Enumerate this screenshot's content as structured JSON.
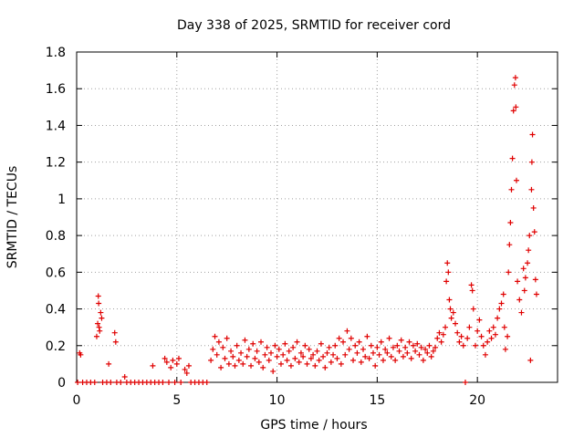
{
  "chart_data": {
    "type": "scatter",
    "title": "Day 338 of 2025, SRMTID for receiver cord",
    "xlabel": "GPS time / hours",
    "ylabel": "SRMTID / TECUs",
    "xlim": [
      0,
      24
    ],
    "ylim": [
      0,
      1.8
    ],
    "xticks": [
      0,
      5,
      10,
      15,
      20
    ],
    "xtick_labels": [
      "0",
      "5",
      "10",
      "15",
      "20"
    ],
    "yticks": [
      0,
      0.2,
      0.4,
      0.6,
      0.8,
      1,
      1.2,
      1.4,
      1.6,
      1.8
    ],
    "ytick_labels": [
      "0",
      "0.2",
      "0.4",
      "0.6",
      "0.8",
      "1",
      "1.2",
      "1.4",
      "1.6",
      "1.8"
    ],
    "grid": true,
    "marker": "+",
    "series": [
      {
        "name": "SRMTID",
        "color": "#e00000",
        "points": [
          [
            0.05,
            0.0
          ],
          [
            0.15,
            0.16
          ],
          [
            0.2,
            0.15
          ],
          [
            0.3,
            0.0
          ],
          [
            0.5,
            0.0
          ],
          [
            0.7,
            0.0
          ],
          [
            0.9,
            0.0
          ],
          [
            1.0,
            0.25
          ],
          [
            1.05,
            0.32
          ],
          [
            1.08,
            0.47
          ],
          [
            1.1,
            0.43
          ],
          [
            1.12,
            0.3
          ],
          [
            1.15,
            0.28
          ],
          [
            1.2,
            0.38
          ],
          [
            1.25,
            0.35
          ],
          [
            1.3,
            0.0
          ],
          [
            1.5,
            0.0
          ],
          [
            1.6,
            0.1
          ],
          [
            1.7,
            0.0
          ],
          [
            1.9,
            0.27
          ],
          [
            1.95,
            0.22
          ],
          [
            2.0,
            0.0
          ],
          [
            2.2,
            0.0
          ],
          [
            2.4,
            0.03
          ],
          [
            2.5,
            0.0
          ],
          [
            2.7,
            0.0
          ],
          [
            2.9,
            0.0
          ],
          [
            3.1,
            0.0
          ],
          [
            3.3,
            0.0
          ],
          [
            3.5,
            0.0
          ],
          [
            3.7,
            0.0
          ],
          [
            3.8,
            0.09
          ],
          [
            3.9,
            0.0
          ],
          [
            4.1,
            0.0
          ],
          [
            4.3,
            0.0
          ],
          [
            4.4,
            0.13
          ],
          [
            4.5,
            0.11
          ],
          [
            4.6,
            0.0
          ],
          [
            4.7,
            0.08
          ],
          [
            4.8,
            0.12
          ],
          [
            4.9,
            0.0
          ],
          [
            5.0,
            0.1
          ],
          [
            5.1,
            0.13
          ],
          [
            5.2,
            0.0
          ],
          [
            5.4,
            0.07
          ],
          [
            5.5,
            0.05
          ],
          [
            5.6,
            0.09
          ],
          [
            5.7,
            0.0
          ],
          [
            5.9,
            0.0
          ],
          [
            6.1,
            0.0
          ],
          [
            6.3,
            0.0
          ],
          [
            6.5,
            0.0
          ],
          [
            6.7,
            0.12
          ],
          [
            6.8,
            0.18
          ],
          [
            6.9,
            0.25
          ],
          [
            7.0,
            0.15
          ],
          [
            7.1,
            0.22
          ],
          [
            7.2,
            0.08
          ],
          [
            7.3,
            0.19
          ],
          [
            7.4,
            0.13
          ],
          [
            7.5,
            0.24
          ],
          [
            7.6,
            0.1
          ],
          [
            7.7,
            0.17
          ],
          [
            7.8,
            0.14
          ],
          [
            7.9,
            0.09
          ],
          [
            8.0,
            0.2
          ],
          [
            8.1,
            0.12
          ],
          [
            8.2,
            0.16
          ],
          [
            8.3,
            0.1
          ],
          [
            8.4,
            0.23
          ],
          [
            8.5,
            0.14
          ],
          [
            8.6,
            0.18
          ],
          [
            8.7,
            0.09
          ],
          [
            8.8,
            0.21
          ],
          [
            8.9,
            0.13
          ],
          [
            9.0,
            0.17
          ],
          [
            9.1,
            0.11
          ],
          [
            9.2,
            0.22
          ],
          [
            9.3,
            0.08
          ],
          [
            9.4,
            0.15
          ],
          [
            9.5,
            0.19
          ],
          [
            9.6,
            0.12
          ],
          [
            9.7,
            0.16
          ],
          [
            9.8,
            0.06
          ],
          [
            9.9,
            0.2
          ],
          [
            10.0,
            0.14
          ],
          [
            10.1,
            0.18
          ],
          [
            10.2,
            0.1
          ],
          [
            10.3,
            0.15
          ],
          [
            10.4,
            0.21
          ],
          [
            10.5,
            0.12
          ],
          [
            10.6,
            0.17
          ],
          [
            10.7,
            0.09
          ],
          [
            10.8,
            0.19
          ],
          [
            10.9,
            0.13
          ],
          [
            11.0,
            0.22
          ],
          [
            11.1,
            0.11
          ],
          [
            11.2,
            0.16
          ],
          [
            11.3,
            0.14
          ],
          [
            11.4,
            0.2
          ],
          [
            11.5,
            0.1
          ],
          [
            11.6,
            0.18
          ],
          [
            11.7,
            0.13
          ],
          [
            11.8,
            0.15
          ],
          [
            11.9,
            0.09
          ],
          [
            12.0,
            0.17
          ],
          [
            12.1,
            0.12
          ],
          [
            12.2,
            0.21
          ],
          [
            12.3,
            0.14
          ],
          [
            12.4,
            0.08
          ],
          [
            12.5,
            0.16
          ],
          [
            12.6,
            0.19
          ],
          [
            12.7,
            0.11
          ],
          [
            12.8,
            0.15
          ],
          [
            12.9,
            0.2
          ],
          [
            13.0,
            0.13
          ],
          [
            13.1,
            0.24
          ],
          [
            13.2,
            0.1
          ],
          [
            13.3,
            0.22
          ],
          [
            13.4,
            0.15
          ],
          [
            13.5,
            0.28
          ],
          [
            13.6,
            0.18
          ],
          [
            13.7,
            0.24
          ],
          [
            13.8,
            0.12
          ],
          [
            13.9,
            0.2
          ],
          [
            14.0,
            0.16
          ],
          [
            14.1,
            0.22
          ],
          [
            14.2,
            0.11
          ],
          [
            14.3,
            0.18
          ],
          [
            14.4,
            0.14
          ],
          [
            14.5,
            0.25
          ],
          [
            14.6,
            0.13
          ],
          [
            14.7,
            0.2
          ],
          [
            14.8,
            0.16
          ],
          [
            14.9,
            0.09
          ],
          [
            15.0,
            0.19
          ],
          [
            15.1,
            0.15
          ],
          [
            15.2,
            0.22
          ],
          [
            15.3,
            0.12
          ],
          [
            15.4,
            0.18
          ],
          [
            15.5,
            0.16
          ],
          [
            15.6,
            0.24
          ],
          [
            15.7,
            0.14
          ],
          [
            15.8,
            0.19
          ],
          [
            15.9,
            0.12
          ],
          [
            16.0,
            0.2
          ],
          [
            16.1,
            0.17
          ],
          [
            16.2,
            0.23
          ],
          [
            16.3,
            0.14
          ],
          [
            16.4,
            0.19
          ],
          [
            16.5,
            0.16
          ],
          [
            16.6,
            0.22
          ],
          [
            16.7,
            0.13
          ],
          [
            16.8,
            0.2
          ],
          [
            16.9,
            0.17
          ],
          [
            17.0,
            0.21
          ],
          [
            17.1,
            0.15
          ],
          [
            17.2,
            0.19
          ],
          [
            17.3,
            0.12
          ],
          [
            17.4,
            0.18
          ],
          [
            17.5,
            0.16
          ],
          [
            17.6,
            0.2
          ],
          [
            17.7,
            0.14
          ],
          [
            17.8,
            0.17
          ],
          [
            17.9,
            0.19
          ],
          [
            18.0,
            0.24
          ],
          [
            18.1,
            0.27
          ],
          [
            18.2,
            0.22
          ],
          [
            18.3,
            0.26
          ],
          [
            18.4,
            0.3
          ],
          [
            18.45,
            0.55
          ],
          [
            18.5,
            0.65
          ],
          [
            18.55,
            0.6
          ],
          [
            18.6,
            0.45
          ],
          [
            18.65,
            0.4
          ],
          [
            18.7,
            0.35
          ],
          [
            18.8,
            0.38
          ],
          [
            18.9,
            0.32
          ],
          [
            19.0,
            0.27
          ],
          [
            19.1,
            0.22
          ],
          [
            19.2,
            0.25
          ],
          [
            19.3,
            0.2
          ],
          [
            19.4,
            0.0
          ],
          [
            19.5,
            0.24
          ],
          [
            19.6,
            0.3
          ],
          [
            19.7,
            0.53
          ],
          [
            19.75,
            0.5
          ],
          [
            19.8,
            0.4
          ],
          [
            19.9,
            0.2
          ],
          [
            20.0,
            0.28
          ],
          [
            20.1,
            0.34
          ],
          [
            20.2,
            0.25
          ],
          [
            20.3,
            0.2
          ],
          [
            20.4,
            0.15
          ],
          [
            20.5,
            0.22
          ],
          [
            20.6,
            0.28
          ],
          [
            20.7,
            0.24
          ],
          [
            20.8,
            0.3
          ],
          [
            20.9,
            0.26
          ],
          [
            21.0,
            0.35
          ],
          [
            21.1,
            0.4
          ],
          [
            21.2,
            0.43
          ],
          [
            21.3,
            0.48
          ],
          [
            21.35,
            0.3
          ],
          [
            21.4,
            0.18
          ],
          [
            21.5,
            0.25
          ],
          [
            21.55,
            0.6
          ],
          [
            21.6,
            0.75
          ],
          [
            21.65,
            0.87
          ],
          [
            21.7,
            1.05
          ],
          [
            21.75,
            1.22
          ],
          [
            21.8,
            1.48
          ],
          [
            21.85,
            1.62
          ],
          [
            21.9,
            1.66
          ],
          [
            21.92,
            1.5
          ],
          [
            21.95,
            1.1
          ],
          [
            22.0,
            0.55
          ],
          [
            22.1,
            0.45
          ],
          [
            22.2,
            0.38
          ],
          [
            22.3,
            0.62
          ],
          [
            22.35,
            0.5
          ],
          [
            22.4,
            0.57
          ],
          [
            22.5,
            0.65
          ],
          [
            22.55,
            0.72
          ],
          [
            22.6,
            0.8
          ],
          [
            22.65,
            0.12
          ],
          [
            22.7,
            1.05
          ],
          [
            22.72,
            1.2
          ],
          [
            22.75,
            1.35
          ],
          [
            22.8,
            0.95
          ],
          [
            22.85,
            0.82
          ],
          [
            22.9,
            0.56
          ],
          [
            22.95,
            0.48
          ]
        ]
      }
    ]
  }
}
